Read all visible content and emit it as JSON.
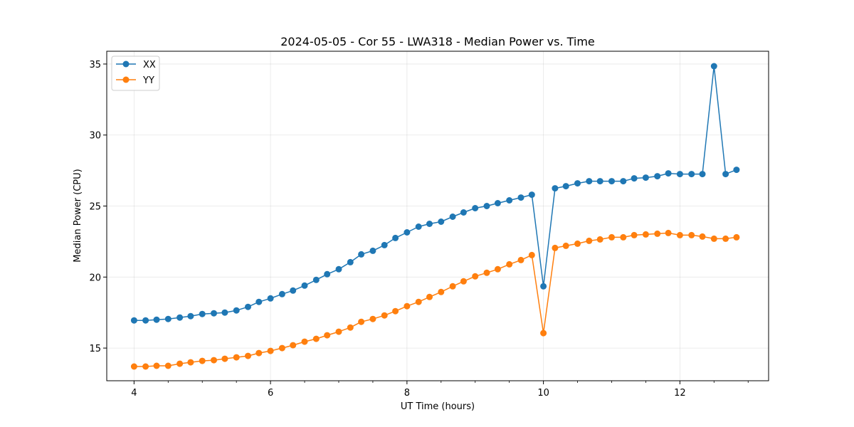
{
  "chart_data": {
    "type": "line",
    "title": "2024-05-05 - Cor 55 - LWA318 - Median Power vs. Time",
    "xlabel": "UT Time (hours)",
    "ylabel": "Median Power (CPU)",
    "xlim": [
      3.6,
      13.3
    ],
    "ylim": [
      12.7,
      35.9
    ],
    "xticks": [
      4,
      6,
      8,
      10,
      12
    ],
    "yticks": [
      15,
      20,
      25,
      30,
      35
    ],
    "grid": true,
    "legend_position": "top-left",
    "x": [
      4.0,
      4.17,
      4.33,
      4.5,
      4.67,
      4.83,
      5.0,
      5.17,
      5.33,
      5.5,
      5.67,
      5.83,
      6.0,
      6.17,
      6.33,
      6.5,
      6.67,
      6.83,
      7.0,
      7.17,
      7.33,
      7.5,
      7.67,
      7.83,
      8.0,
      8.17,
      8.33,
      8.5,
      8.67,
      8.83,
      9.0,
      9.17,
      9.33,
      9.5,
      9.67,
      9.83,
      10.0,
      10.17,
      10.33,
      10.5,
      10.67,
      10.83,
      11.0,
      11.17,
      11.33,
      11.5,
      11.67,
      11.83,
      12.0,
      12.17,
      12.33,
      12.5,
      12.67,
      12.83
    ],
    "series": [
      {
        "name": "XX",
        "color": "#1f77b4",
        "values": [
          16.95,
          16.95,
          17.0,
          17.05,
          17.15,
          17.25,
          17.4,
          17.45,
          17.5,
          17.65,
          17.9,
          18.25,
          18.5,
          18.8,
          19.05,
          19.4,
          19.8,
          20.2,
          20.55,
          21.05,
          21.6,
          21.85,
          22.25,
          22.75,
          23.15,
          23.55,
          23.75,
          23.9,
          24.25,
          24.55,
          24.85,
          25.0,
          25.2,
          25.4,
          25.6,
          25.8,
          19.35,
          26.25,
          26.4,
          26.6,
          26.75,
          26.75,
          26.75,
          26.75,
          26.95,
          27.0,
          27.1,
          27.3,
          27.25,
          27.25,
          27.25,
          34.85,
          27.25,
          27.55
        ]
      },
      {
        "name": "YY",
        "color": "#ff7f0e",
        "values": [
          13.7,
          13.7,
          13.75,
          13.75,
          13.9,
          14.0,
          14.1,
          14.15,
          14.25,
          14.35,
          14.45,
          14.65,
          14.8,
          15.0,
          15.2,
          15.45,
          15.65,
          15.9,
          16.15,
          16.45,
          16.85,
          17.05,
          17.3,
          17.6,
          17.95,
          18.25,
          18.6,
          18.95,
          19.35,
          19.7,
          20.05,
          20.3,
          20.55,
          20.9,
          21.2,
          21.55,
          16.05,
          22.05,
          22.2,
          22.35,
          22.55,
          22.65,
          22.8,
          22.8,
          22.95,
          23.0,
          23.05,
          23.1,
          22.95,
          22.95,
          22.85,
          22.7,
          22.7,
          22.8
        ]
      }
    ]
  }
}
